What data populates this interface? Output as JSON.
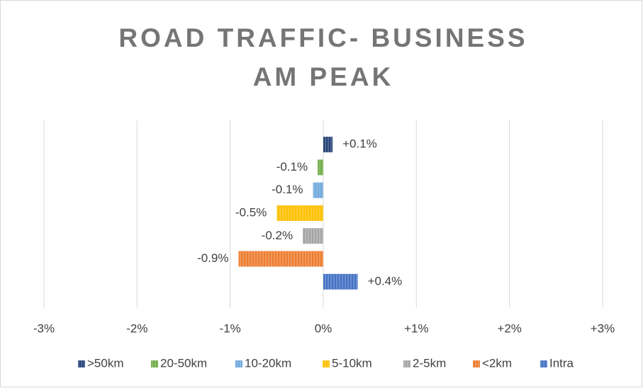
{
  "chart_data": {
    "type": "hbar",
    "title": [
      "ROAD TRAFFIC- BUSINESS",
      "AM PEAK"
    ],
    "series": [
      {
        "name": ">50km",
        "color": "#264478",
        "values": [
          0.1
        ],
        "value_labels": [
          "+0.1%"
        ]
      },
      {
        "name": "20-50km",
        "color": "#70ad47",
        "values": [
          -0.06
        ],
        "value_labels": [
          "-0.1%"
        ]
      },
      {
        "name": "10-20km",
        "color": "#6fa8dc",
        "values": [
          -0.11
        ],
        "value_labels": [
          "-0.1%"
        ]
      },
      {
        "name": "5-10km",
        "color": "#ffc000",
        "values": [
          -0.5
        ],
        "value_labels": [
          "-0.5%"
        ]
      },
      {
        "name": "2-5km",
        "color": "#a5a5a5",
        "values": [
          -0.22
        ],
        "value_labels": [
          "-0.2%"
        ]
      },
      {
        "name": "<2km",
        "color": "#ed7d31",
        "values": [
          -0.91
        ],
        "value_labels": [
          "-0.9%"
        ]
      },
      {
        "name": "Intra",
        "color": "#4472c4",
        "values": [
          0.37
        ],
        "value_labels": [
          "+0.4%"
        ]
      }
    ],
    "xlim": [
      -3,
      3
    ],
    "xticks": [
      {
        "value": -3,
        "label": "-3%"
      },
      {
        "value": -2,
        "label": "-2%"
      },
      {
        "value": -1,
        "label": "-1%"
      },
      {
        "value": 0,
        "label": "0%"
      },
      {
        "value": 1,
        "label": "+1%"
      },
      {
        "value": 2,
        "label": "+2%"
      },
      {
        "value": 3,
        "label": "+3%"
      }
    ],
    "grid": true,
    "legend": "bottom"
  }
}
